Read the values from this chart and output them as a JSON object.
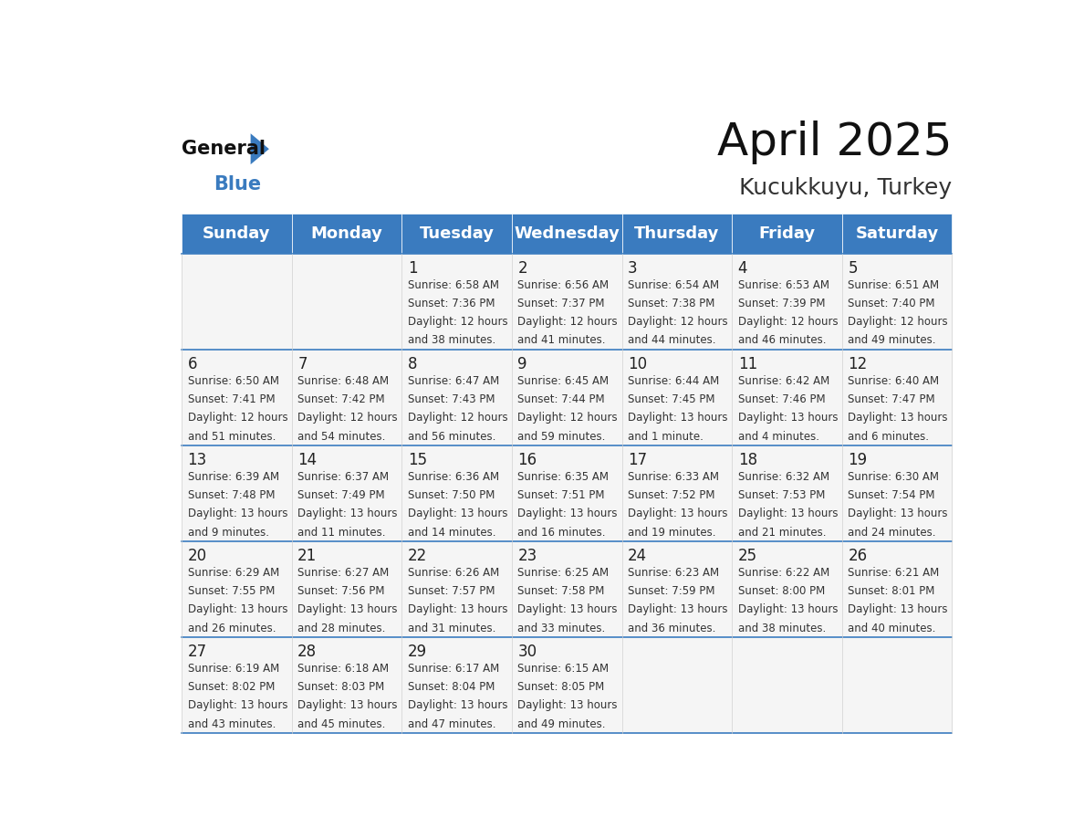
{
  "title": "April 2025",
  "subtitle": "Kucukkuyu, Turkey",
  "header_color": "#3a7bbf",
  "header_text_color": "#ffffff",
  "cell_bg_color": "#f5f5f5",
  "day_headers": [
    "Sunday",
    "Monday",
    "Tuesday",
    "Wednesday",
    "Thursday",
    "Friday",
    "Saturday"
  ],
  "days": [
    {
      "day": 1,
      "col": 2,
      "row": 0,
      "sunrise": "6:58 AM",
      "sunset": "7:36 PM",
      "daylight": "12 hours and 38 minutes."
    },
    {
      "day": 2,
      "col": 3,
      "row": 0,
      "sunrise": "6:56 AM",
      "sunset": "7:37 PM",
      "daylight": "12 hours and 41 minutes."
    },
    {
      "day": 3,
      "col": 4,
      "row": 0,
      "sunrise": "6:54 AM",
      "sunset": "7:38 PM",
      "daylight": "12 hours and 44 minutes."
    },
    {
      "day": 4,
      "col": 5,
      "row": 0,
      "sunrise": "6:53 AM",
      "sunset": "7:39 PM",
      "daylight": "12 hours and 46 minutes."
    },
    {
      "day": 5,
      "col": 6,
      "row": 0,
      "sunrise": "6:51 AM",
      "sunset": "7:40 PM",
      "daylight": "12 hours and 49 minutes."
    },
    {
      "day": 6,
      "col": 0,
      "row": 1,
      "sunrise": "6:50 AM",
      "sunset": "7:41 PM",
      "daylight": "12 hours and 51 minutes."
    },
    {
      "day": 7,
      "col": 1,
      "row": 1,
      "sunrise": "6:48 AM",
      "sunset": "7:42 PM",
      "daylight": "12 hours and 54 minutes."
    },
    {
      "day": 8,
      "col": 2,
      "row": 1,
      "sunrise": "6:47 AM",
      "sunset": "7:43 PM",
      "daylight": "12 hours and 56 minutes."
    },
    {
      "day": 9,
      "col": 3,
      "row": 1,
      "sunrise": "6:45 AM",
      "sunset": "7:44 PM",
      "daylight": "12 hours and 59 minutes."
    },
    {
      "day": 10,
      "col": 4,
      "row": 1,
      "sunrise": "6:44 AM",
      "sunset": "7:45 PM",
      "daylight": "13 hours and 1 minute."
    },
    {
      "day": 11,
      "col": 5,
      "row": 1,
      "sunrise": "6:42 AM",
      "sunset": "7:46 PM",
      "daylight": "13 hours and 4 minutes."
    },
    {
      "day": 12,
      "col": 6,
      "row": 1,
      "sunrise": "6:40 AM",
      "sunset": "7:47 PM",
      "daylight": "13 hours and 6 minutes."
    },
    {
      "day": 13,
      "col": 0,
      "row": 2,
      "sunrise": "6:39 AM",
      "sunset": "7:48 PM",
      "daylight": "13 hours and 9 minutes."
    },
    {
      "day": 14,
      "col": 1,
      "row": 2,
      "sunrise": "6:37 AM",
      "sunset": "7:49 PM",
      "daylight": "13 hours and 11 minutes."
    },
    {
      "day": 15,
      "col": 2,
      "row": 2,
      "sunrise": "6:36 AM",
      "sunset": "7:50 PM",
      "daylight": "13 hours and 14 minutes."
    },
    {
      "day": 16,
      "col": 3,
      "row": 2,
      "sunrise": "6:35 AM",
      "sunset": "7:51 PM",
      "daylight": "13 hours and 16 minutes."
    },
    {
      "day": 17,
      "col": 4,
      "row": 2,
      "sunrise": "6:33 AM",
      "sunset": "7:52 PM",
      "daylight": "13 hours and 19 minutes."
    },
    {
      "day": 18,
      "col": 5,
      "row": 2,
      "sunrise": "6:32 AM",
      "sunset": "7:53 PM",
      "daylight": "13 hours and 21 minutes."
    },
    {
      "day": 19,
      "col": 6,
      "row": 2,
      "sunrise": "6:30 AM",
      "sunset": "7:54 PM",
      "daylight": "13 hours and 24 minutes."
    },
    {
      "day": 20,
      "col": 0,
      "row": 3,
      "sunrise": "6:29 AM",
      "sunset": "7:55 PM",
      "daylight": "13 hours and 26 minutes."
    },
    {
      "day": 21,
      "col": 1,
      "row": 3,
      "sunrise": "6:27 AM",
      "sunset": "7:56 PM",
      "daylight": "13 hours and 28 minutes."
    },
    {
      "day": 22,
      "col": 2,
      "row": 3,
      "sunrise": "6:26 AM",
      "sunset": "7:57 PM",
      "daylight": "13 hours and 31 minutes."
    },
    {
      "day": 23,
      "col": 3,
      "row": 3,
      "sunrise": "6:25 AM",
      "sunset": "7:58 PM",
      "daylight": "13 hours and 33 minutes."
    },
    {
      "day": 24,
      "col": 4,
      "row": 3,
      "sunrise": "6:23 AM",
      "sunset": "7:59 PM",
      "daylight": "13 hours and 36 minutes."
    },
    {
      "day": 25,
      "col": 5,
      "row": 3,
      "sunrise": "6:22 AM",
      "sunset": "8:00 PM",
      "daylight": "13 hours and 38 minutes."
    },
    {
      "day": 26,
      "col": 6,
      "row": 3,
      "sunrise": "6:21 AM",
      "sunset": "8:01 PM",
      "daylight": "13 hours and 40 minutes."
    },
    {
      "day": 27,
      "col": 0,
      "row": 4,
      "sunrise": "6:19 AM",
      "sunset": "8:02 PM",
      "daylight": "13 hours and 43 minutes."
    },
    {
      "day": 28,
      "col": 1,
      "row": 4,
      "sunrise": "6:18 AM",
      "sunset": "8:03 PM",
      "daylight": "13 hours and 45 minutes."
    },
    {
      "day": 29,
      "col": 2,
      "row": 4,
      "sunrise": "6:17 AM",
      "sunset": "8:04 PM",
      "daylight": "13 hours and 47 minutes."
    },
    {
      "day": 30,
      "col": 3,
      "row": 4,
      "sunrise": "6:15 AM",
      "sunset": "8:05 PM",
      "daylight": "13 hours and 49 minutes."
    }
  ],
  "logo_text_general": "General",
  "logo_text_blue": "Blue",
  "logo_triangle_color": "#3a7bbf",
  "title_fontsize": 36,
  "subtitle_fontsize": 18,
  "header_fontsize": 13,
  "day_num_fontsize": 12,
  "cell_text_fontsize": 8.5
}
